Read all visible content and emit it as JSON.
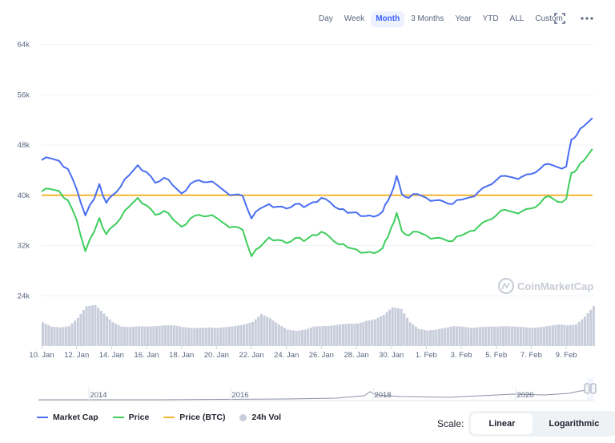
{
  "toolbar": {
    "ranges": [
      "Day",
      "Week",
      "Month",
      "3 Months",
      "Year",
      "YTD",
      "ALL",
      "Custom"
    ],
    "active_range": "Month"
  },
  "watermark": "CoinMarketCap",
  "scale": {
    "label": "Scale:",
    "options": [
      "Linear",
      "Logarithmic"
    ],
    "active": "Linear"
  },
  "colors": {
    "market_cap": "#4a6ef0",
    "price": "#3fcd5e",
    "price_btc": "#f6b532",
    "volume": "#c8cddb",
    "navigator_line": "#8a93a6"
  },
  "chart_data": {
    "type": "line",
    "title": "",
    "xlabel": "",
    "ylabel": "",
    "ylim": [
      16000,
      66000
    ],
    "y_ticks": [
      "64k",
      "56k",
      "48k",
      "40k",
      "32k",
      "24k"
    ],
    "y_tick_values": [
      64000,
      56000,
      48000,
      40000,
      32000,
      24000
    ],
    "x_ticks": [
      "10. Jan",
      "12. Jan",
      "14. Jan",
      "16. Jan",
      "18. Jan",
      "20. Jan",
      "22. Jan",
      "24. Jan",
      "26. Jan",
      "28. Jan",
      "30. Jan",
      "1. Feb",
      "3. Feb",
      "5. Feb",
      "7. Feb",
      "9. Feb"
    ],
    "x_days": [
      0,
      2,
      4,
      6,
      8,
      10,
      12,
      14,
      16,
      18,
      20,
      22,
      24,
      26,
      28,
      30
    ],
    "xlim": [
      0,
      31.6
    ],
    "grid": true,
    "legend_position": "bottom-left",
    "series": [
      {
        "name": "Market Cap",
        "x": [
          0,
          0.5,
          1,
          1.5,
          2,
          2.5,
          3,
          3.3,
          3.7,
          4,
          4.5,
          5,
          5.5,
          6,
          6.5,
          7,
          7.5,
          8,
          8.5,
          9,
          9.5,
          10,
          10.5,
          11,
          11.5,
          12,
          12.5,
          13,
          13.5,
          14,
          14.5,
          15,
          15.5,
          16,
          16.5,
          17,
          17.5,
          18,
          18.5,
          19,
          19.5,
          19.8,
          20,
          20.3,
          20.6,
          21,
          21.5,
          22,
          22.5,
          23,
          23.5,
          24,
          24.5,
          25,
          25.5,
          26,
          26.5,
          27,
          27.5,
          28,
          28.5,
          29,
          29.5,
          30,
          30.3,
          30.6,
          31,
          31.5
        ],
        "values": [
          45600,
          45900,
          45500,
          44200,
          41000,
          36800,
          39400,
          41800,
          38800,
          39900,
          41300,
          43200,
          44800,
          43700,
          42000,
          42800,
          41600,
          40300,
          41800,
          42400,
          42100,
          41700,
          40600,
          40100,
          39900,
          36300,
          37900,
          38600,
          38200,
          37900,
          38600,
          38100,
          38900,
          39600,
          38900,
          37800,
          37200,
          37300,
          36700,
          36600,
          37400,
          39100,
          40300,
          43100,
          40200,
          39600,
          40200,
          39600,
          39200,
          39000,
          38600,
          39300,
          39700,
          40600,
          41500,
          42400,
          43100,
          42800,
          43000,
          43400,
          44200,
          45000,
          44500,
          44600,
          48900,
          49600,
          51000,
          52300
        ]
      },
      {
        "name": "Price",
        "x": [
          0,
          0.5,
          1,
          1.5,
          2,
          2.5,
          3,
          3.3,
          3.7,
          4,
          4.5,
          5,
          5.5,
          6,
          6.5,
          7,
          7.5,
          8,
          8.5,
          9,
          9.5,
          10,
          10.5,
          11,
          11.5,
          12,
          12.5,
          13,
          13.5,
          14,
          14.5,
          15,
          15.5,
          16,
          16.5,
          17,
          17.5,
          18,
          18.5,
          19,
          19.5,
          19.8,
          20,
          20.3,
          20.6,
          21,
          21.5,
          22,
          22.5,
          23,
          23.5,
          24,
          24.5,
          25,
          25.5,
          26,
          26.5,
          27,
          27.5,
          28,
          28.5,
          29,
          29.5,
          30,
          30.3,
          30.6,
          31,
          31.5
        ],
        "values": [
          40600,
          41000,
          40700,
          39200,
          36100,
          31100,
          34200,
          36400,
          33800,
          34900,
          36300,
          38200,
          39600,
          38400,
          36900,
          37500,
          36200,
          35000,
          36300,
          36900,
          36700,
          36400,
          35400,
          35000,
          34500,
          30300,
          31800,
          33300,
          32900,
          32400,
          33200,
          32700,
          33700,
          34200,
          33300,
          32200,
          31700,
          31400,
          30900,
          30800,
          31600,
          33300,
          34900,
          37200,
          34300,
          33600,
          34200,
          33600,
          33200,
          33000,
          32700,
          33600,
          34300,
          35100,
          36000,
          36800,
          37700,
          37300,
          37500,
          37900,
          38700,
          39900,
          39000,
          39400,
          43600,
          44100,
          45500,
          47400
        ]
      },
      {
        "name": "Price (BTC)",
        "x": [
          0,
          31.5
        ],
        "values": [
          40000,
          40000
        ]
      }
    ],
    "volume_series": {
      "name": "24h Vol",
      "x": [
        0,
        0.5,
        1,
        1.5,
        2,
        2.5,
        3,
        3.5,
        4,
        4.5,
        5,
        5.5,
        6,
        6.5,
        7,
        7.5,
        8,
        8.5,
        9,
        9.5,
        10,
        10.5,
        11,
        11.5,
        12,
        12.5,
        13,
        13.5,
        14,
        14.5,
        15,
        15.5,
        16,
        16.5,
        17,
        17.5,
        18,
        18.5,
        19,
        19.5,
        20,
        20.5,
        21,
        21.5,
        22,
        22.5,
        23,
        23.5,
        24,
        24.5,
        25,
        25.5,
        26,
        26.5,
        27,
        27.5,
        28,
        28.5,
        29,
        29.5,
        30,
        30.5,
        31,
        31.5
      ],
      "values": [
        0.55,
        0.45,
        0.43,
        0.46,
        0.65,
        0.92,
        0.95,
        0.75,
        0.55,
        0.45,
        0.44,
        0.46,
        0.45,
        0.46,
        0.48,
        0.48,
        0.44,
        0.42,
        0.42,
        0.43,
        0.42,
        0.44,
        0.46,
        0.5,
        0.56,
        0.74,
        0.64,
        0.5,
        0.38,
        0.35,
        0.38,
        0.45,
        0.46,
        0.47,
        0.5,
        0.52,
        0.52,
        0.58,
        0.62,
        0.72,
        0.9,
        0.86,
        0.55,
        0.4,
        0.36,
        0.38,
        0.42,
        0.46,
        0.45,
        0.42,
        0.44,
        0.45,
        0.45,
        0.46,
        0.45,
        0.44,
        0.42,
        0.44,
        0.47,
        0.5,
        0.48,
        0.5,
        0.68,
        0.92
      ]
    },
    "navigator": {
      "x_ticks": [
        "2014",
        "2016",
        "2018",
        "2020"
      ]
    }
  },
  "legend": [
    {
      "label": "Market Cap",
      "kind": "line",
      "color": "#4a6ef0"
    },
    {
      "label": "Price",
      "kind": "line",
      "color": "#3fcd5e"
    },
    {
      "label": "Price (BTC)",
      "kind": "line",
      "color": "#f6b532"
    },
    {
      "label": "24h Vol",
      "kind": "dot",
      "color": "#c8cddb"
    }
  ]
}
